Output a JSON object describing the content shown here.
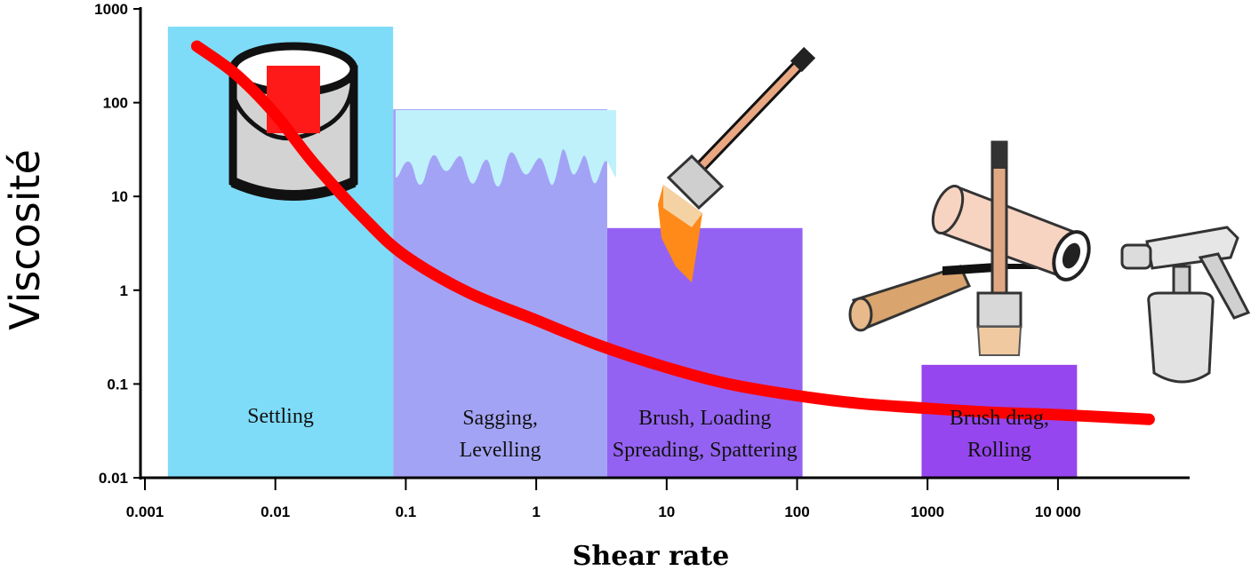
{
  "chart_data": {
    "type": "area",
    "title": "",
    "xlabel": "Shear rate",
    "ylabel": "Viscosité",
    "x_scale": "log",
    "y_scale": "log",
    "xlim": [
      0.001,
      100000
    ],
    "ylim": [
      0.01,
      1000
    ],
    "x_ticks": [
      {
        "value": 0.001,
        "label": "0.001"
      },
      {
        "value": 0.01,
        "label": "0.01"
      },
      {
        "value": 0.1,
        "label": "0.1"
      },
      {
        "value": 1,
        "label": "1"
      },
      {
        "value": 10,
        "label": "10"
      },
      {
        "value": 100,
        "label": "100"
      },
      {
        "value": 1000,
        "label": "1000"
      },
      {
        "value": 10000,
        "label": "10 000"
      }
    ],
    "y_ticks": [
      {
        "value": 1000,
        "label": "1000"
      },
      {
        "value": 100,
        "label": "100"
      },
      {
        "value": 10,
        "label": "10"
      },
      {
        "value": 1,
        "label": "1"
      },
      {
        "value": 0.1,
        "label": "0.1"
      },
      {
        "value": 0.01,
        "label": "0.01"
      }
    ],
    "regions": [
      {
        "label_lines": [
          "Settling"
        ],
        "x_range": [
          0.0015,
          0.08
        ],
        "top": 700,
        "color": "#7fdcf8"
      },
      {
        "label_lines": [
          "Sagging,",
          "Levelling"
        ],
        "x_range": [
          0.08,
          3.5
        ],
        "top": 85,
        "color": "#a3a3f6"
      },
      {
        "label_lines": [
          "Brush, Loading",
          "Spreading, Spattering"
        ],
        "x_range": [
          3.5,
          110
        ],
        "top": 4.6,
        "color": "#9462f2"
      },
      {
        "label_lines": [
          "Brush drag,",
          "Rolling"
        ],
        "x_range": [
          900,
          14000
        ],
        "top": 0.16,
        "color": "#9646ee"
      }
    ],
    "series": [
      {
        "x": [
          0.0025,
          0.005,
          0.01,
          0.02,
          0.05,
          0.1,
          0.3,
          1,
          3,
          10,
          30,
          100,
          300,
          1000,
          3000,
          10000,
          50000
        ],
        "y": [
          400,
          200,
          75,
          22,
          5.5,
          2.3,
          0.95,
          0.48,
          0.26,
          0.15,
          0.1,
          0.075,
          0.062,
          0.055,
          0.05,
          0.047,
          0.042
        ],
        "color": "#ff0000"
      }
    ],
    "grid": false
  }
}
